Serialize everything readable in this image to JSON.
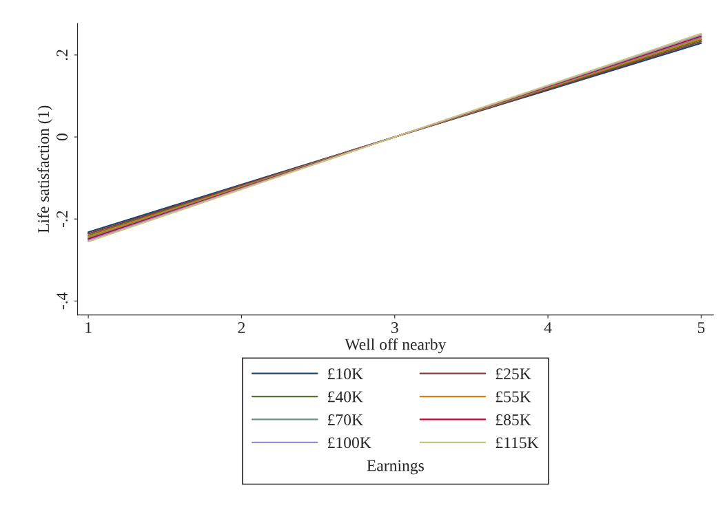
{
  "chart_data": {
    "type": "line",
    "xlabel": "Well off nearby",
    "ylabel": "Life satisfaction (1)",
    "legend_title": "Earnings",
    "legend": "bottom",
    "grid": false,
    "x": [
      1,
      3,
      5
    ],
    "xlim": [
      0.93,
      5.08
    ],
    "xticks": [
      1,
      2,
      3,
      4,
      5
    ],
    "ylim": [
      -0.434,
      0.277
    ],
    "yticks": [
      {
        "value": -0.4,
        "label": "-.4"
      },
      {
        "value": -0.2,
        "label": "-.2"
      },
      {
        "value": 0,
        "label": "0"
      },
      {
        "value": 0.2,
        "label": ".2"
      }
    ],
    "series": [
      {
        "name": "£10K",
        "color": "#1a476f",
        "values": [
          -0.232,
          0,
          0.229
        ]
      },
      {
        "name": "£25K",
        "color": "#90353b",
        "values": [
          -0.236,
          0,
          0.233
        ]
      },
      {
        "name": "£40K",
        "color": "#55752f",
        "values": [
          -0.24,
          0,
          0.237
        ]
      },
      {
        "name": "£55K",
        "color": "#e37e00",
        "values": [
          -0.243,
          0,
          0.24
        ]
      },
      {
        "name": "£70K",
        "color": "#6e8e84",
        "values": [
          -0.246,
          0,
          0.243
        ]
      },
      {
        "name": "£85K",
        "color": "#c10534",
        "values": [
          -0.249,
          0,
          0.246
        ]
      },
      {
        "name": "£100K",
        "color": "#938dd2",
        "values": [
          -0.252,
          0,
          0.249
        ]
      },
      {
        "name": "£115K",
        "color": "#cac27e",
        "values": [
          -0.255,
          0,
          0.252
        ]
      }
    ]
  }
}
